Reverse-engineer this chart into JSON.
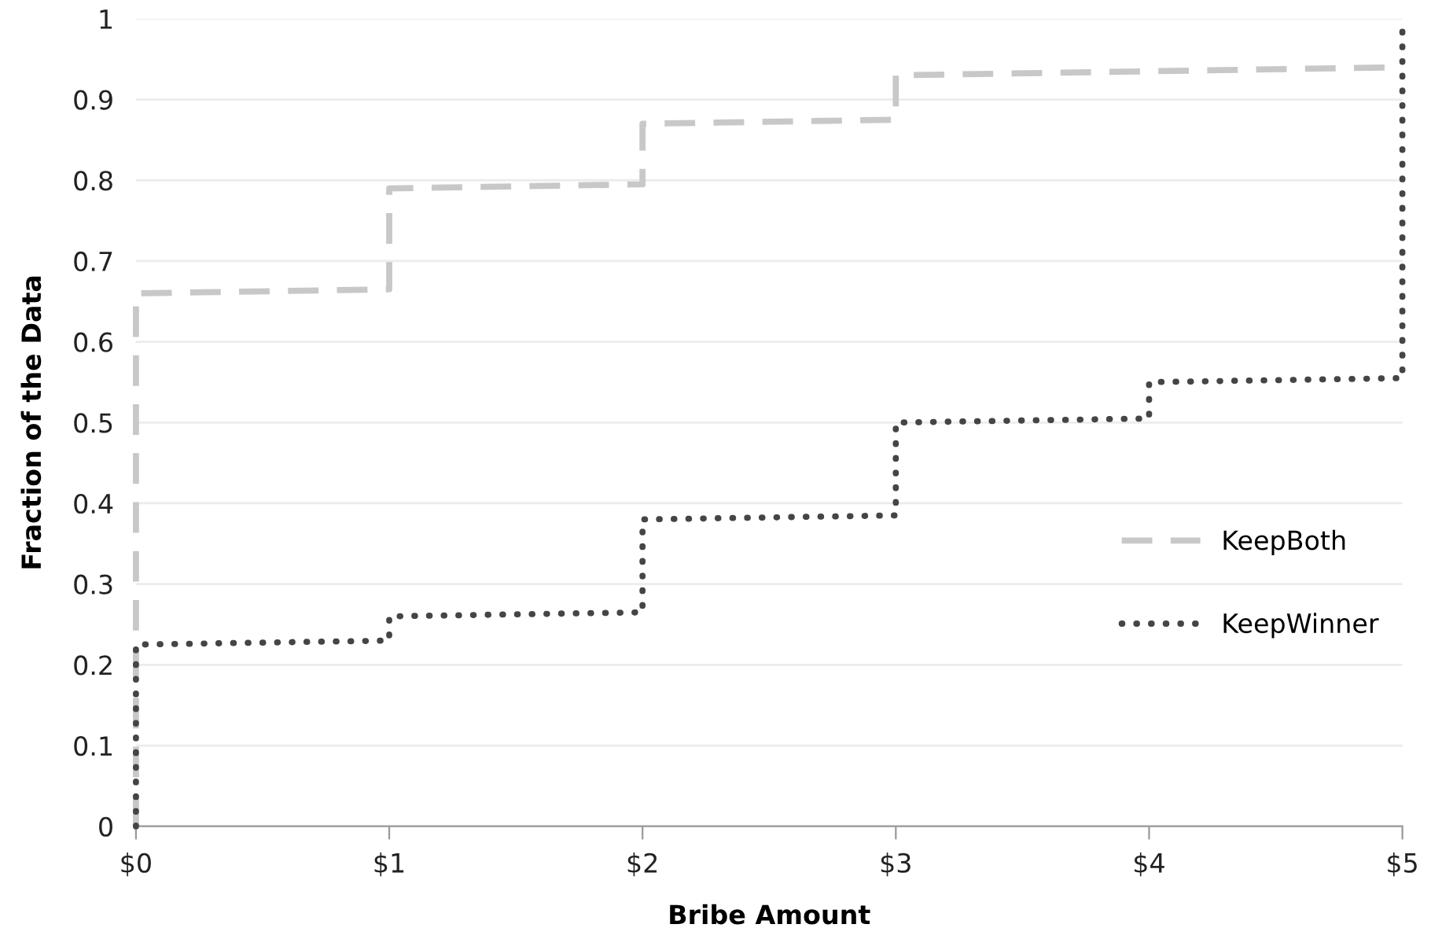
{
  "chart_data": {
    "type": "line",
    "xlabel": "Bribe Amount",
    "ylabel": "Fraction of the Data",
    "xlim": [
      0,
      5
    ],
    "ylim": [
      0,
      1
    ],
    "xticks": [
      {
        "value": 0,
        "label": "$0"
      },
      {
        "value": 1,
        "label": "$1"
      },
      {
        "value": 2,
        "label": "$2"
      },
      {
        "value": 3,
        "label": "$3"
      },
      {
        "value": 4,
        "label": "$4"
      },
      {
        "value": 5,
        "label": "$5"
      }
    ],
    "yticks": [
      0,
      0.1,
      0.2,
      0.3,
      0.4,
      0.5,
      0.6,
      0.7,
      0.8,
      0.9,
      1
    ],
    "grid": "y",
    "legend": "right",
    "marker": "none",
    "series": [
      {
        "name": "KeepBoth",
        "color": "#c8c8c8",
        "line_style": "dashed",
        "x": [
          0,
          0,
          1,
          1,
          2,
          2,
          3,
          3,
          5
        ],
        "values": [
          0,
          0.66,
          0.665,
          0.79,
          0.795,
          0.87,
          0.875,
          0.93,
          0.94
        ]
      },
      {
        "name": "KeepWinner",
        "color": "#454545",
        "line_style": "dotted",
        "x": [
          0,
          0,
          1,
          1,
          2,
          2,
          3,
          3,
          4,
          4,
          5,
          5
        ],
        "values": [
          0,
          0.225,
          0.23,
          0.26,
          0.265,
          0.38,
          0.385,
          0.5,
          0.505,
          0.55,
          0.555,
          1
        ]
      }
    ]
  }
}
